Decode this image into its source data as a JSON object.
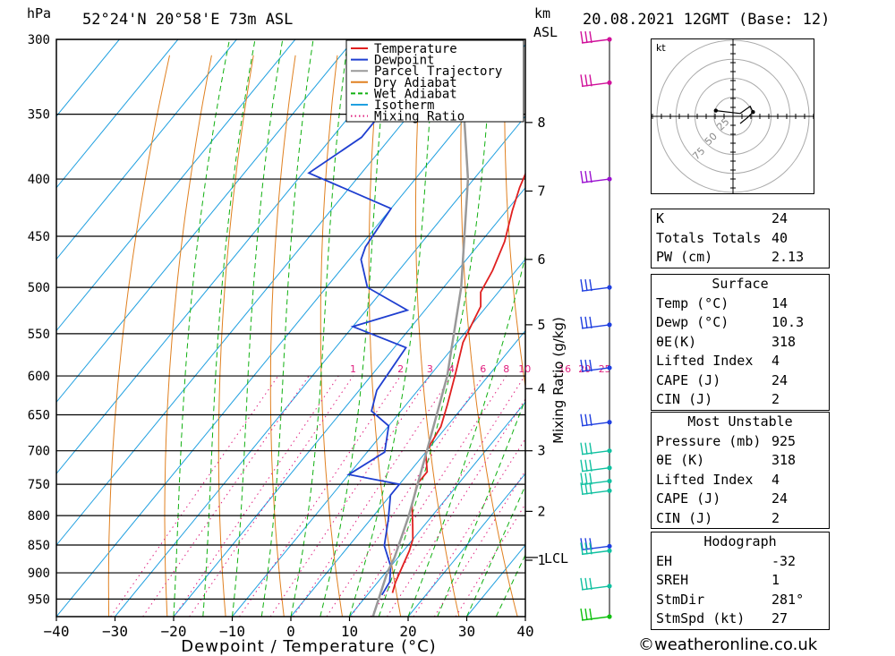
{
  "header": {
    "pressure_unit": "hPa",
    "location": "52°24'N  20°58'E  73m  ASL",
    "km_unit": "km",
    "asl_label": "ASL",
    "datetime": "20.08.2021  12GMT  (Base: 12)"
  },
  "chart_data": {
    "type": "line",
    "xlabel": "Dewpoint / Temperature (°C)",
    "ylabel_left": "hPa",
    "ylabel_right": "Mixing Ratio (g/kg)",
    "xlim": [
      -40,
      40
    ],
    "ylim": [
      985,
      300
    ],
    "x_ticks": [
      "−40",
      "−30",
      "−20",
      "−10",
      "0",
      "10",
      "20",
      "30",
      "40"
    ],
    "pressure_levels": [
      300,
      350,
      400,
      450,
      500,
      550,
      600,
      650,
      700,
      750,
      800,
      850,
      900,
      950
    ],
    "height_km_ticks": [
      {
        "label": "1",
        "p": 877
      },
      {
        "label": "2",
        "p": 793
      },
      {
        "label": "3",
        "p": 700
      },
      {
        "label": "4",
        "p": 616
      },
      {
        "label": "5",
        "p": 540
      },
      {
        "label": "6",
        "p": 472
      },
      {
        "label": "7",
        "p": 410
      },
      {
        "label": "8",
        "p": 356
      }
    ],
    "lcl": {
      "label": "LCL",
      "p": 872
    },
    "mixing_ratio_labels": [
      "1",
      "2",
      "3",
      "4",
      "6",
      "8",
      "10",
      "16",
      "20",
      "25"
    ],
    "series": [
      {
        "name": "Temperature",
        "color": "#e02020",
        "points": [
          [
            938,
            14
          ],
          [
            917,
            13
          ],
          [
            888,
            12
          ],
          [
            860,
            11
          ],
          [
            840,
            10
          ],
          [
            816,
            8
          ],
          [
            782,
            5
          ],
          [
            750,
            3
          ],
          [
            731,
            3
          ],
          [
            702,
            0
          ],
          [
            666,
            -1
          ],
          [
            636,
            -3
          ],
          [
            596,
            -6
          ],
          [
            560,
            -9
          ],
          [
            540,
            -10
          ],
          [
            520,
            -11
          ],
          [
            505,
            -13
          ],
          [
            483,
            -14
          ],
          [
            455,
            -16
          ],
          [
            427,
            -19
          ],
          [
            407,
            -21
          ],
          [
            383,
            -23
          ],
          [
            360,
            -26
          ],
          [
            328,
            -30
          ],
          [
            310,
            -33
          ],
          [
            300,
            -34
          ]
        ]
      },
      {
        "name": "Dewpoint",
        "color": "#1f3fd0",
        "points": [
          [
            942,
            12.5
          ],
          [
            917,
            12
          ],
          [
            888,
            10
          ],
          [
            851,
            6
          ],
          [
            806,
            3
          ],
          [
            767,
            0
          ],
          [
            750,
            0
          ],
          [
            735,
            -10
          ],
          [
            702,
            -7
          ],
          [
            665,
            -10
          ],
          [
            645,
            -15
          ],
          [
            618,
            -17
          ],
          [
            566,
            -18
          ],
          [
            542,
            -30
          ],
          [
            524,
            -23
          ],
          [
            500,
            -33
          ],
          [
            472,
            -38
          ],
          [
            460,
            -39
          ],
          [
            425,
            -40
          ],
          [
            395,
            -59
          ],
          [
            367,
            -55
          ],
          [
            347,
            -55
          ],
          [
            339,
            -48
          ],
          [
            325,
            -50
          ],
          [
            321,
            -54
          ],
          [
            312,
            -46
          ],
          [
            306,
            -46
          ],
          [
            305,
            -53
          ],
          [
            300,
            -47
          ]
        ]
      },
      {
        "name": "Parcel Trajectory",
        "color": "#999999",
        "points": [
          [
            985,
            14
          ],
          [
            900,
            10.3
          ],
          [
            872,
            9.4
          ],
          [
            800,
            6
          ],
          [
            700,
            0
          ],
          [
            600,
            -7
          ],
          [
            500,
            -17
          ],
          [
            400,
            -31
          ],
          [
            300,
            -52
          ]
        ]
      },
      {
        "name": "Dry Adiabat",
        "color": "#e08020"
      },
      {
        "name": "Wet Adiabat",
        "color": "#10b010"
      },
      {
        "name": "Isotherm",
        "color": "#20a0e0"
      },
      {
        "name": "Mixing Ratio",
        "color": "#e0207f"
      }
    ],
    "wind_barbs": [
      {
        "p": 300,
        "color": "#d0109a"
      },
      {
        "p": 328,
        "color": "#d0109a"
      },
      {
        "p": 400,
        "color": "#9a10d0"
      },
      {
        "p": 500,
        "color": "#1f3fe0"
      },
      {
        "p": 540,
        "color": "#1f3fe0"
      },
      {
        "p": 590,
        "color": "#1f3fe0"
      },
      {
        "p": 660,
        "color": "#1f3fe0"
      },
      {
        "p": 700,
        "color": "#10c0a0"
      },
      {
        "p": 725,
        "color": "#10c0a0"
      },
      {
        "p": 745,
        "color": "#10c0a0"
      },
      {
        "p": 760,
        "color": "#10c0a0"
      },
      {
        "p": 852,
        "color": "#1f3fe0"
      },
      {
        "p": 860,
        "color": "#10c0a0"
      },
      {
        "p": 925,
        "color": "#10c0a0"
      },
      {
        "p": 985,
        "color": "#10c010"
      }
    ],
    "hodograph": {
      "unit": "kt",
      "ring_labels": [
        "25",
        "50",
        "75"
      ],
      "points": [
        [
          -12,
          4
        ],
        [
          5,
          2
        ],
        [
          12,
          7
        ],
        [
          14,
          3
        ],
        [
          10,
          -1
        ],
        [
          5,
          -5
        ]
      ]
    }
  },
  "indices": [
    {
      "label": "K",
      "value": "24"
    },
    {
      "label": "Totals Totals",
      "value": "40"
    },
    {
      "label": "PW (cm)",
      "value": "2.13"
    }
  ],
  "surface": {
    "title": "Surface",
    "rows": [
      {
        "label": "Temp (°C)",
        "value": "14"
      },
      {
        "label": "Dewp (°C)",
        "value": "10.3"
      },
      {
        "label": "θE(K)",
        "value": "318"
      },
      {
        "label": "Lifted Index",
        "value": "4"
      },
      {
        "label": "CAPE (J)",
        "value": "24"
      },
      {
        "label": "CIN (J)",
        "value": "2"
      }
    ]
  },
  "most_unstable": {
    "title": "Most Unstable",
    "rows": [
      {
        "label": "Pressure (mb)",
        "value": "925"
      },
      {
        "label": "θE (K)",
        "value": "318"
      },
      {
        "label": "Lifted Index",
        "value": "4"
      },
      {
        "label": "CAPE (J)",
        "value": "24"
      },
      {
        "label": "CIN (J)",
        "value": "2"
      }
    ]
  },
  "hodograph_table": {
    "title": "Hodograph",
    "rows": [
      {
        "label": "EH",
        "value": "-32"
      },
      {
        "label": "SREH",
        "value": "1"
      },
      {
        "label": "StmDir",
        "value": "281°"
      },
      {
        "label": "StmSpd (kt)",
        "value": "27"
      }
    ]
  },
  "credit": "©weatheronline.co.uk"
}
